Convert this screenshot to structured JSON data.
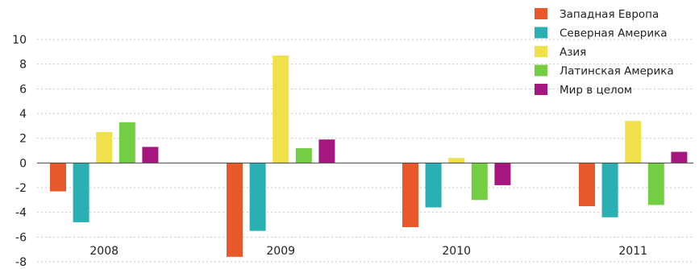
{
  "chart_data": {
    "type": "bar",
    "categories": [
      "2008",
      "2009",
      "2010",
      "2011"
    ],
    "series": [
      {
        "name": "Западная Европа",
        "color": "#E8582A",
        "values": [
          -2.3,
          -7.6,
          -5.2,
          -3.5
        ]
      },
      {
        "name": "Северная Америка",
        "color": "#2AAFB3",
        "values": [
          -4.8,
          -5.5,
          -3.6,
          -4.4
        ]
      },
      {
        "name": "Азия",
        "color": "#F0E04A",
        "values": [
          2.5,
          8.7,
          0.4,
          3.4
        ]
      },
      {
        "name": "Латинская Америка",
        "color": "#74CE44",
        "values": [
          3.3,
          1.2,
          -3.0,
          -3.4
        ]
      },
      {
        "name": "Мир в целом",
        "color": "#A5177E",
        "values": [
          1.3,
          1.9,
          -1.8,
          0.9
        ]
      }
    ],
    "yticks": [
      "10",
      "8",
      "6",
      "4",
      "2",
      "0",
      "-2",
      "-4",
      "-6",
      "-8"
    ],
    "ylim": [
      -8,
      10
    ],
    "grid": true,
    "legend": "top-right"
  }
}
